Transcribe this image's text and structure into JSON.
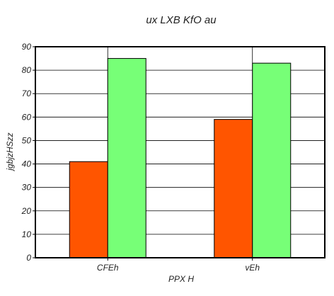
{
  "chart_data": {
    "type": "bar",
    "title": "ux LXB  KfO au",
    "xlabel": "PPX  H",
    "ylabel": "jgbjzHSzz",
    "categories": [
      "CFEh",
      "vEh"
    ],
    "series": [
      {
        "color": "#ff5500",
        "values": [
          41,
          59
        ]
      },
      {
        "color": "#77ff77",
        "values": [
          85,
          83
        ]
      }
    ],
    "ylim": [
      0,
      90
    ],
    "yticks": [
      0,
      10,
      20,
      30,
      40,
      50,
      60,
      70,
      80,
      90
    ],
    "grid": true
  }
}
